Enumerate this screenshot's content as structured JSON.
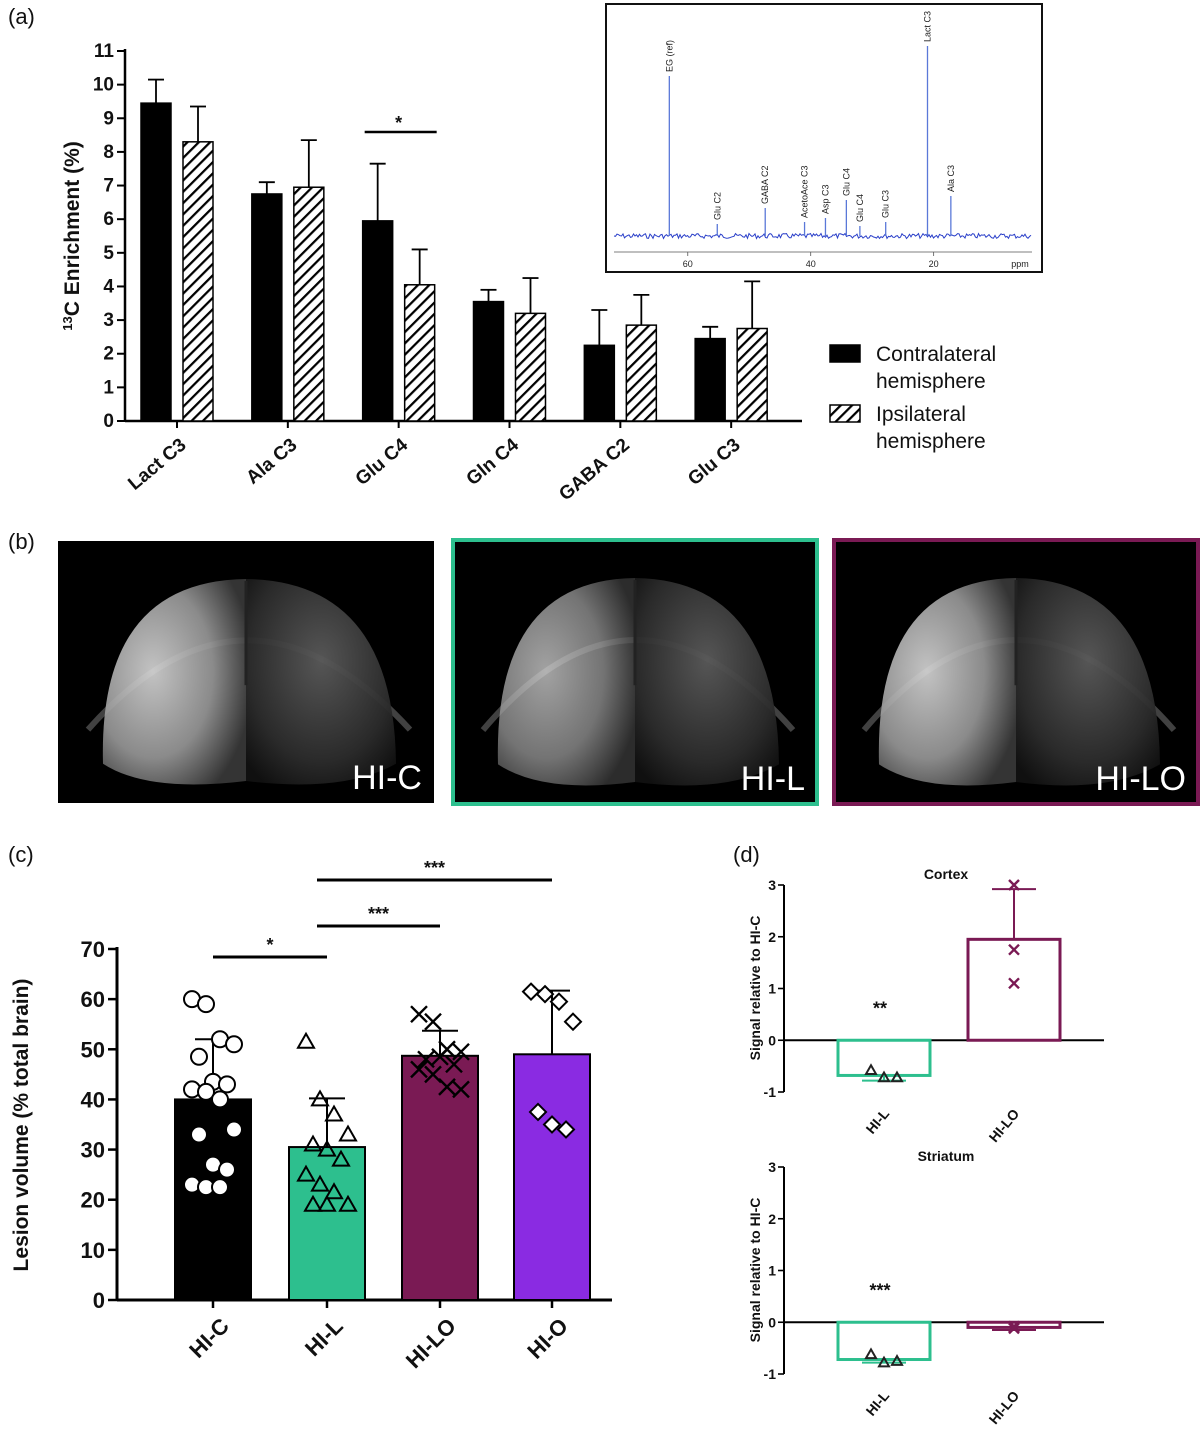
{
  "panel_labels": {
    "a": "(a)",
    "b": "(b)",
    "c": "(c)",
    "d": "(d)"
  },
  "colors": {
    "hic": "#000000",
    "hil": "#2dbf8e",
    "hilo": "#7a1a54",
    "hio": "#8a2be2",
    "inset_line": "#2a3fc9"
  },
  "chart_data": [
    {
      "id": "a",
      "type": "bar",
      "categories": [
        "Lact C3",
        "Ala C3",
        "Glu C4",
        "Gln C4",
        "GABA C2",
        "Glu C3"
      ],
      "series": [
        {
          "name": "Contralateral hemisphere",
          "values": [
            9.45,
            6.75,
            5.95,
            3.55,
            2.25,
            2.45
          ],
          "err": [
            0.7,
            0.35,
            1.7,
            0.35,
            1.05,
            0.35
          ],
          "fill": "solid"
        },
        {
          "name": "Ipsilateral hemisphere",
          "values": [
            8.3,
            6.95,
            4.05,
            3.2,
            2.85,
            2.75
          ],
          "err": [
            1.05,
            1.4,
            1.05,
            1.05,
            0.9,
            1.4
          ],
          "fill": "hatch"
        }
      ],
      "ylabel_prefix": "13",
      "ylabel": "C Enrichment (%)",
      "ylim": [
        0,
        11
      ],
      "yticks": [
        "0",
        "1",
        "2",
        "3",
        "4",
        "5",
        "6",
        "7",
        "8",
        "9",
        "10",
        "11"
      ],
      "annotations": [
        {
          "text": "*",
          "between": "Glu C4"
        }
      ],
      "legend": {
        "placement": "right",
        "entries": [
          [
            "Contralateral",
            "hemisphere"
          ],
          [
            "Ipsilateral",
            "hemisphere"
          ]
        ]
      },
      "inset": {
        "type": "spectrum",
        "xaxis": "ppm",
        "xticks": [
          "60",
          "40",
          "20"
        ],
        "peaks": [
          {
            "label": "EG (ref)",
            "ppm": 63.0,
            "height": 0.8
          },
          {
            "label": "Glu C2",
            "ppm": 55.2,
            "height": 0.06
          },
          {
            "label": "GABA C2",
            "ppm": 47.4,
            "height": 0.14
          },
          {
            "label": "AcetoAce C3",
            "ppm": 41.0,
            "height": 0.07
          },
          {
            "label": "Asp C3",
            "ppm": 37.6,
            "height": 0.09
          },
          {
            "label": "Glu C4",
            "ppm": 34.2,
            "height": 0.18
          },
          {
            "label": "Glu C4",
            "ppm": 32.0,
            "height": 0.05
          },
          {
            "label": "Glu C3",
            "ppm": 27.8,
            "height": 0.07
          },
          {
            "label": "Lact C3",
            "ppm": 21.0,
            "height": 0.95
          },
          {
            "label": "Ala C3",
            "ppm": 17.2,
            "height": 0.2
          }
        ]
      }
    },
    {
      "id": "c",
      "type": "bar",
      "categories": [
        "HI-C",
        "HI-L",
        "HI-LO",
        "HI-O"
      ],
      "values": [
        40,
        30.5,
        48.7,
        49
      ],
      "err": [
        12,
        9.7,
        5,
        12.7
      ],
      "ylabel": "Lesion volume (% total brain)",
      "ylim": [
        0,
        70
      ],
      "yticks": [
        "0",
        "10",
        "20",
        "30",
        "40",
        "50",
        "60",
        "70"
      ],
      "points": [
        [
          60,
          59,
          52,
          51,
          48.5,
          43.5,
          43,
          42,
          41.5,
          40,
          34,
          33,
          27,
          26,
          23,
          22.5,
          22.5
        ],
        [
          51.5,
          40,
          37,
          33,
          31,
          30,
          28,
          25,
          23,
          21.5,
          19,
          19,
          19
        ],
        [
          57,
          55.5,
          50,
          49.5,
          48,
          48.5,
          47,
          46,
          45,
          42.5,
          42
        ],
        [
          61.5,
          61,
          59.5,
          55.5,
          37.5,
          35,
          34
        ]
      ],
      "markers": [
        "circle",
        "triangle",
        "cross",
        "diamond"
      ],
      "significance": [
        {
          "from": "HI-C",
          "to": "HI-L",
          "text": "*"
        },
        {
          "from": "HI-L",
          "to": "HI-LO",
          "text": "***"
        },
        {
          "from": "HI-L",
          "to": "HI-O",
          "text": "***"
        }
      ]
    },
    {
      "id": "d-cortex",
      "type": "bar",
      "title": "Cortex",
      "categories": [
        "HI-L",
        "HI-LO"
      ],
      "values": [
        -0.68,
        1.95
      ],
      "err": [
        0.1,
        0.97
      ],
      "points": [
        [
          -0.58,
          -0.72,
          -0.72
        ],
        [
          3.0,
          1.75,
          1.1
        ]
      ],
      "markers": [
        "triangle",
        "cross"
      ],
      "ylabel": "Signal relative to HI-C",
      "ylim": [
        -1,
        3
      ],
      "yticks": [
        "-1",
        "0",
        "1",
        "2",
        "3"
      ],
      "annotations": [
        {
          "text": "**",
          "category": "HI-L"
        }
      ]
    },
    {
      "id": "d-striatum",
      "type": "bar",
      "title": "Striatum",
      "categories": [
        "HI-L",
        "HI-LO"
      ],
      "values": [
        -0.72,
        -0.1
      ],
      "err": [
        0.06,
        0.05
      ],
      "points": [
        [
          -0.62,
          -0.78,
          -0.75
        ],
        [
          -0.08,
          -0.12,
          -0.1
        ]
      ],
      "markers": [
        "triangle",
        "cross"
      ],
      "ylabel": "Signal relative to HI-C",
      "ylim": [
        -1,
        3
      ],
      "yticks": [
        "-1",
        "0",
        "1",
        "2",
        "3"
      ],
      "annotations": [
        {
          "text": "***",
          "category": "HI-L"
        }
      ]
    }
  ],
  "mri": [
    {
      "label": "HI-C",
      "border": "#000000"
    },
    {
      "label": "HI-L",
      "border": "#2dbf8e"
    },
    {
      "label": "HI-LO",
      "border": "#7a1a54"
    }
  ]
}
